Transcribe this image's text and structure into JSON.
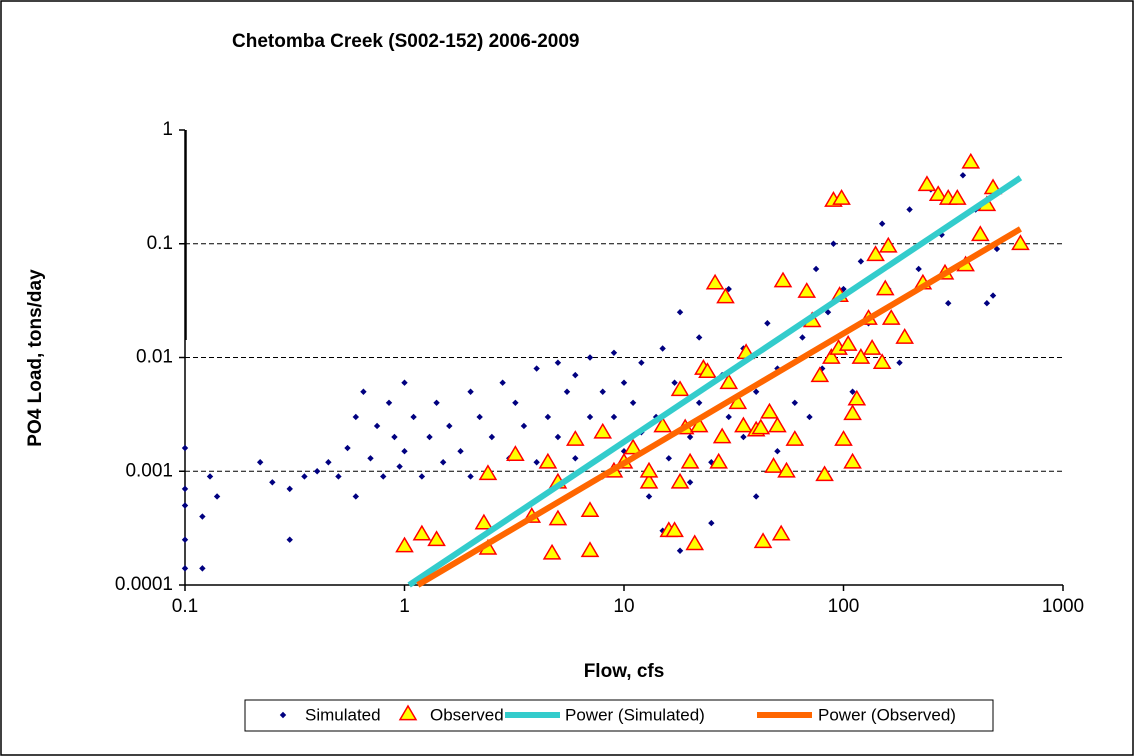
{
  "chart_data": {
    "type": "scatter",
    "title": "Chetomba Creek (S002-152)  2006-2009",
    "x_label": "Flow, cfs",
    "y_label": "PO4 Load, tons/day",
    "xlog": true,
    "ylog": true,
    "xlim": [
      0.1,
      1000
    ],
    "ylim": [
      0.0001,
      1
    ],
    "xticks": [
      0.1,
      1,
      10,
      100,
      1000
    ],
    "yticks": [
      0.0001,
      0.001,
      0.01,
      0.1,
      1
    ],
    "grid": true,
    "legend": "bottom",
    "series": [
      {
        "name": "Simulated",
        "type": "scatter",
        "marker": "diamond",
        "color": "#000080",
        "x": [
          0.1,
          0.1,
          0.1,
          0.1,
          0.1,
          0.12,
          0.12,
          0.13,
          0.14,
          0.22,
          0.25,
          0.3,
          0.3,
          0.35,
          0.4,
          0.45,
          0.5,
          0.55,
          0.6,
          0.6,
          0.65,
          0.7,
          0.75,
          0.8,
          0.85,
          0.9,
          0.95,
          1,
          1,
          1.1,
          1.2,
          1.3,
          1.4,
          1.5,
          1.6,
          1.8,
          2,
          2,
          2.2,
          2.5,
          2.8,
          3,
          3.2,
          3.5,
          4,
          4,
          4.5,
          5,
          5,
          5.5,
          6,
          6,
          7,
          7,
          8,
          8,
          9,
          9,
          10,
          10,
          11,
          12,
          12,
          13,
          14,
          15,
          15,
          16,
          17,
          18,
          18,
          20,
          20,
          22,
          22,
          25,
          25,
          28,
          30,
          30,
          35,
          35,
          40,
          40,
          45,
          50,
          50,
          55,
          60,
          65,
          70,
          75,
          80,
          85,
          90,
          100,
          100,
          110,
          120,
          130,
          150,
          160,
          180,
          200,
          220,
          250,
          280,
          300,
          350,
          400,
          450,
          480,
          500,
          600
        ],
        "values": [
          0.0016,
          0.0007,
          0.0005,
          0.00025,
          0.00014,
          0.00014,
          0.0004,
          0.0009,
          0.0006,
          0.0012,
          0.0008,
          0.0007,
          0.00025,
          0.0009,
          0.001,
          0.0012,
          0.0009,
          0.0016,
          0.003,
          0.0006,
          0.005,
          0.0013,
          0.0025,
          0.0009,
          0.004,
          0.002,
          0.0011,
          0.006,
          0.0015,
          0.003,
          0.0009,
          0.002,
          0.004,
          0.0012,
          0.0025,
          0.0015,
          0.005,
          0.0009,
          0.003,
          0.002,
          0.006,
          0.0013,
          0.004,
          0.0025,
          0.008,
          0.0012,
          0.003,
          0.009,
          0.002,
          0.005,
          0.0013,
          0.007,
          0.003,
          0.01,
          0.005,
          0.0009,
          0.011,
          0.003,
          0.006,
          0.0015,
          0.004,
          0.009,
          0.0022,
          0.0006,
          0.003,
          0.012,
          0.0003,
          0.0013,
          0.006,
          0.025,
          0.0002,
          0.002,
          0.0008,
          0.004,
          0.015,
          0.0012,
          0.00035,
          0.007,
          0.003,
          0.04,
          0.002,
          0.012,
          0.005,
          0.0006,
          0.02,
          0.0015,
          0.008,
          0.045,
          0.004,
          0.015,
          0.003,
          0.06,
          0.008,
          0.025,
          0.1,
          0.012,
          0.04,
          0.005,
          0.07,
          0.02,
          0.15,
          0.04,
          0.009,
          0.2,
          0.06,
          0.3,
          0.12,
          0.03,
          0.4,
          0.2,
          0.03,
          0.035,
          0.09,
          0.35
        ]
      },
      {
        "name": "Observed",
        "type": "scatter",
        "marker": "triangle",
        "color": "#ffff00",
        "edge_color": "#ff0000",
        "x": [
          1,
          1.2,
          1.4,
          2.3,
          2.4,
          2.4,
          3.2,
          3.8,
          4.5,
          4.7,
          5,
          5,
          6,
          7,
          7,
          8,
          9,
          10,
          11,
          13,
          13,
          15,
          16,
          17,
          18,
          18,
          19,
          20,
          21,
          22,
          23,
          24,
          26,
          27,
          28,
          29,
          30,
          33,
          35,
          36,
          40,
          42,
          43,
          46,
          48,
          50,
          52,
          53,
          55,
          60,
          68,
          72,
          78,
          82,
          88,
          90,
          95,
          96,
          98,
          100,
          105,
          110,
          110,
          115,
          120,
          130,
          135,
          140,
          150,
          155,
          160,
          165,
          190,
          230,
          240,
          270,
          290,
          300,
          330,
          360,
          380,
          420,
          450,
          480,
          640
        ],
        "values": [
          0.00022,
          0.00028,
          0.00025,
          0.00035,
          0.00021,
          0.00095,
          0.0014,
          0.0004,
          0.0012,
          0.00019,
          0.00038,
          0.0008,
          0.0019,
          0.0002,
          0.00045,
          0.0022,
          0.001,
          0.0012,
          0.0016,
          0.0008,
          0.001,
          0.0025,
          0.0003,
          0.0003,
          0.0008,
          0.0052,
          0.0024,
          0.0012,
          0.00023,
          0.0025,
          0.008,
          0.0075,
          0.045,
          0.0012,
          0.002,
          0.034,
          0.006,
          0.004,
          0.0025,
          0.011,
          0.0023,
          0.0024,
          0.00024,
          0.0033,
          0.0011,
          0.0025,
          0.00028,
          0.047,
          0.001,
          0.0019,
          0.038,
          0.021,
          0.0069,
          0.00093,
          0.01,
          0.24,
          0.012,
          0.035,
          0.25,
          0.0019,
          0.013,
          0.0012,
          0.0032,
          0.0043,
          0.01,
          0.022,
          0.012,
          0.08,
          0.009,
          0.04,
          0.095,
          0.022,
          0.015,
          0.045,
          0.33,
          0.27,
          0.055,
          0.25,
          0.25,
          0.065,
          0.52,
          0.12,
          0.22,
          0.31,
          0.1
        ]
      },
      {
        "name": "Power (Simulated)",
        "type": "line",
        "color": "#33cccc",
        "x": [
          1.05,
          640
        ],
        "values": [
          0.0001,
          0.38
        ]
      },
      {
        "name": "Power (Observed)",
        "type": "line",
        "color": "#ff6600",
        "x": [
          1.15,
          640
        ],
        "values": [
          0.0001,
          0.135
        ]
      }
    ]
  }
}
